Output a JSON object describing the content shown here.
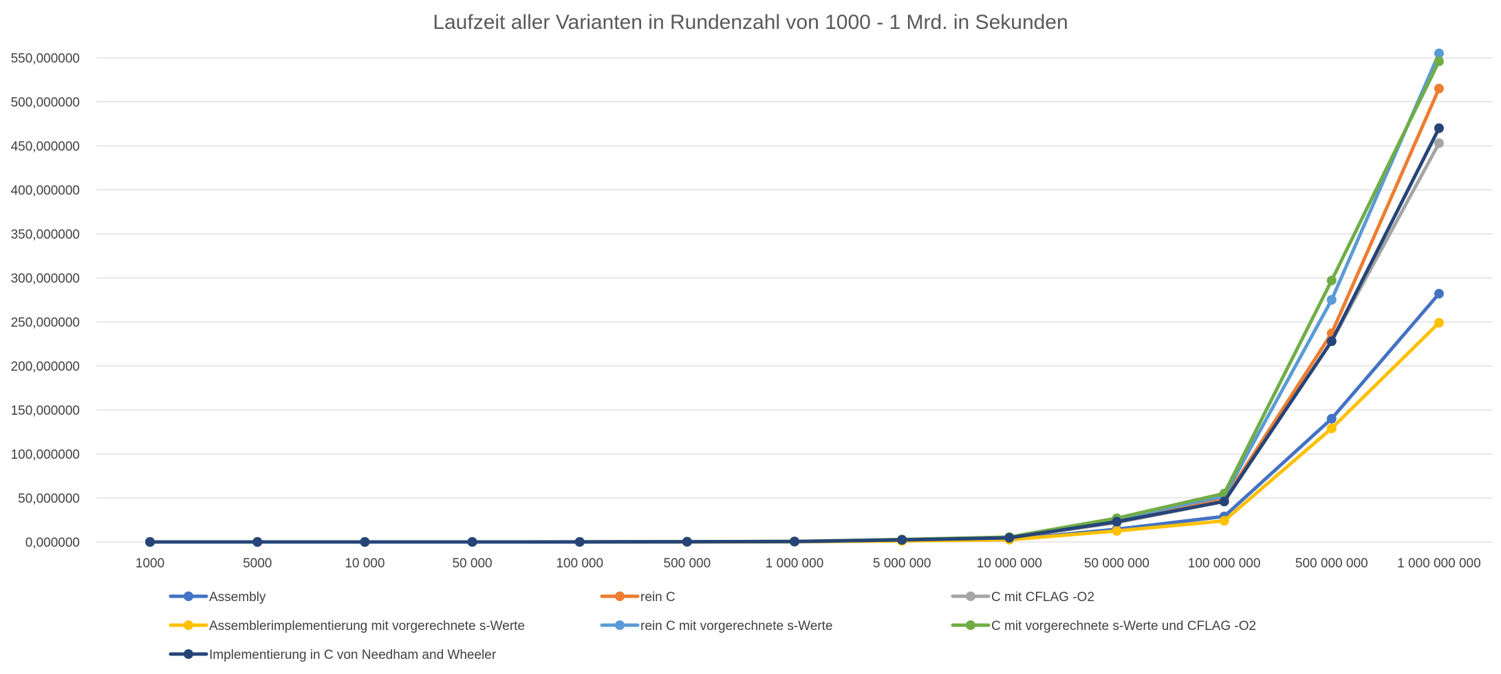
{
  "chart_data": {
    "type": "line",
    "title": "Laufzeit aller Varianten in Rundenzahl von 1000 - 1 Mrd. in Sekunden",
    "xlabel": "",
    "ylabel": "",
    "categories": [
      "1000",
      "5000",
      "10 000",
      "50 000",
      "100 000",
      "500 000",
      "1 000 000",
      "5 000 000",
      "10 000 000",
      "50 000 000",
      "100 000 000",
      "500 000 000",
      "1 000 000 000"
    ],
    "ylim": [
      0,
      550
    ],
    "yticks": [
      0,
      50,
      100,
      150,
      200,
      250,
      300,
      350,
      400,
      450,
      500,
      550
    ],
    "ytick_labels": [
      "0,000000",
      "50,000000",
      "100,000000",
      "150,000000",
      "200,000000",
      "250,000000",
      "300,000000",
      "350,000000",
      "400,000000",
      "450,000000",
      "500,000000",
      "550,000000"
    ],
    "grid": true,
    "legend_position": "bottom",
    "series": [
      {
        "name": "Assembly",
        "color": "#4472c4",
        "values": [
          0.0003,
          0.0014,
          0.0028,
          0.014,
          0.028,
          0.14,
          0.28,
          1.4,
          2.8,
          14.5,
          29,
          140,
          282
        ]
      },
      {
        "name": "rein C",
        "color": "#ed7d31",
        "values": [
          0.0005,
          0.0026,
          0.005,
          0.026,
          0.05,
          0.26,
          0.5,
          2.5,
          5,
          24,
          48,
          237,
          515
        ]
      },
      {
        "name": "C mit CFLAG -O2",
        "color": "#a5a5a5",
        "values": [
          0.0005,
          0.0023,
          0.0046,
          0.023,
          0.046,
          0.23,
          0.46,
          2.3,
          4.6,
          22,
          46,
          228,
          453
        ]
      },
      {
        "name": "Assemblerimplementierung mit vorgerechnete s-Werte",
        "color": "#ffc000",
        "values": [
          0.0002,
          0.0012,
          0.0025,
          0.012,
          0.025,
          0.12,
          0.25,
          1.2,
          2.5,
          12.5,
          24,
          129,
          249
        ]
      },
      {
        "name": "rein C mit vorgerechnete s-Werte",
        "color": "#5b9bd5",
        "values": [
          0.0005,
          0.0027,
          0.0053,
          0.027,
          0.053,
          0.27,
          0.53,
          2.7,
          5.3,
          26,
          52,
          275,
          555
        ]
      },
      {
        "name": "C mit vorgerechnete s-Werte und CFLAG -O2",
        "color": "#70ad47",
        "values": [
          0.0006,
          0.0028,
          0.0056,
          0.028,
          0.056,
          0.28,
          0.56,
          2.8,
          5.6,
          27,
          55,
          297,
          546
        ]
      },
      {
        "name": "Implementierung in C von Needham and Wheeler",
        "color": "#264478",
        "values": [
          0.0005,
          0.0023,
          0.0047,
          0.023,
          0.047,
          0.23,
          0.47,
          2.3,
          4.7,
          23,
          46,
          228,
          470
        ]
      }
    ]
  }
}
